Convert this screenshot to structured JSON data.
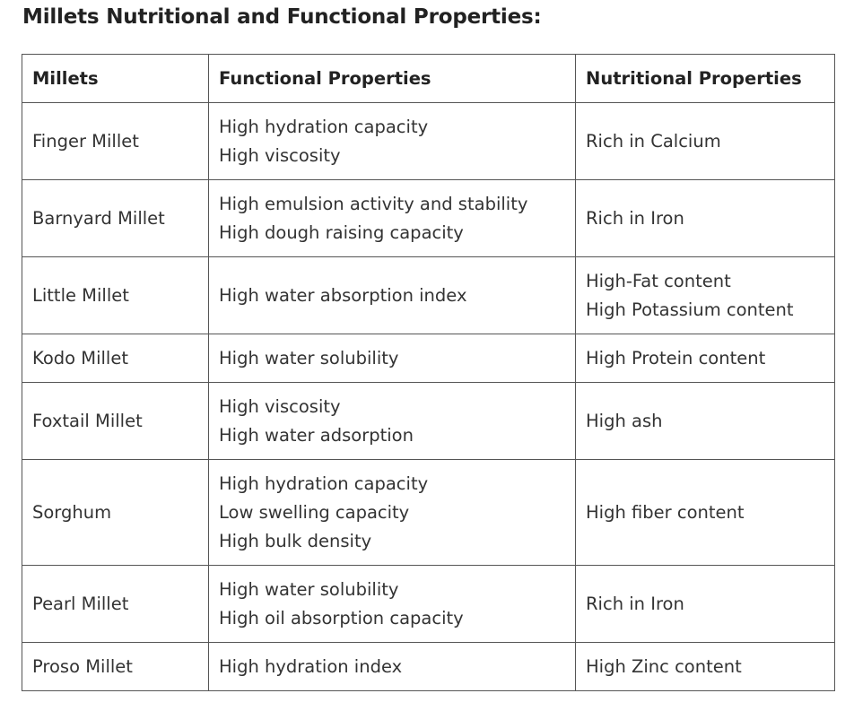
{
  "title": "Millets Nutritional and Functional Properties:",
  "table": {
    "headers": [
      "Millets",
      "Functional Properties",
      "Nutritional Properties"
    ],
    "rows": [
      {
        "millet": "Finger Millet",
        "functional": [
          "High hydration capacity",
          "High viscosity"
        ],
        "nutritional": [
          "Rich in Calcium"
        ]
      },
      {
        "millet": "Barnyard Millet",
        "functional": [
          "High emulsion activity and stability",
          "High dough raising capacity"
        ],
        "nutritional": [
          "Rich in Iron"
        ]
      },
      {
        "millet": "Little Millet",
        "functional": [
          "High water absorption index"
        ],
        "nutritional": [
          "High-Fat content",
          "High Potassium content"
        ]
      },
      {
        "millet": "Kodo Millet",
        "functional": [
          "High water solubility"
        ],
        "nutritional": [
          "High Protein content"
        ]
      },
      {
        "millet": "Foxtail Millet",
        "functional": [
          "High viscosity",
          "High water adsorption"
        ],
        "nutritional": [
          "High ash"
        ]
      },
      {
        "millet": "Sorghum",
        "functional": [
          "High hydration capacity",
          "Low swelling capacity",
          "High bulk density"
        ],
        "nutritional": [
          "High fiber content"
        ]
      },
      {
        "millet": "Pearl Millet",
        "functional": [
          "High water solubility",
          "High oil absorption capacity"
        ],
        "nutritional": [
          "Rich in Iron"
        ]
      },
      {
        "millet": "Proso Millet",
        "functional": [
          "High hydration index"
        ],
        "nutritional": [
          "High Zinc content"
        ]
      }
    ]
  }
}
